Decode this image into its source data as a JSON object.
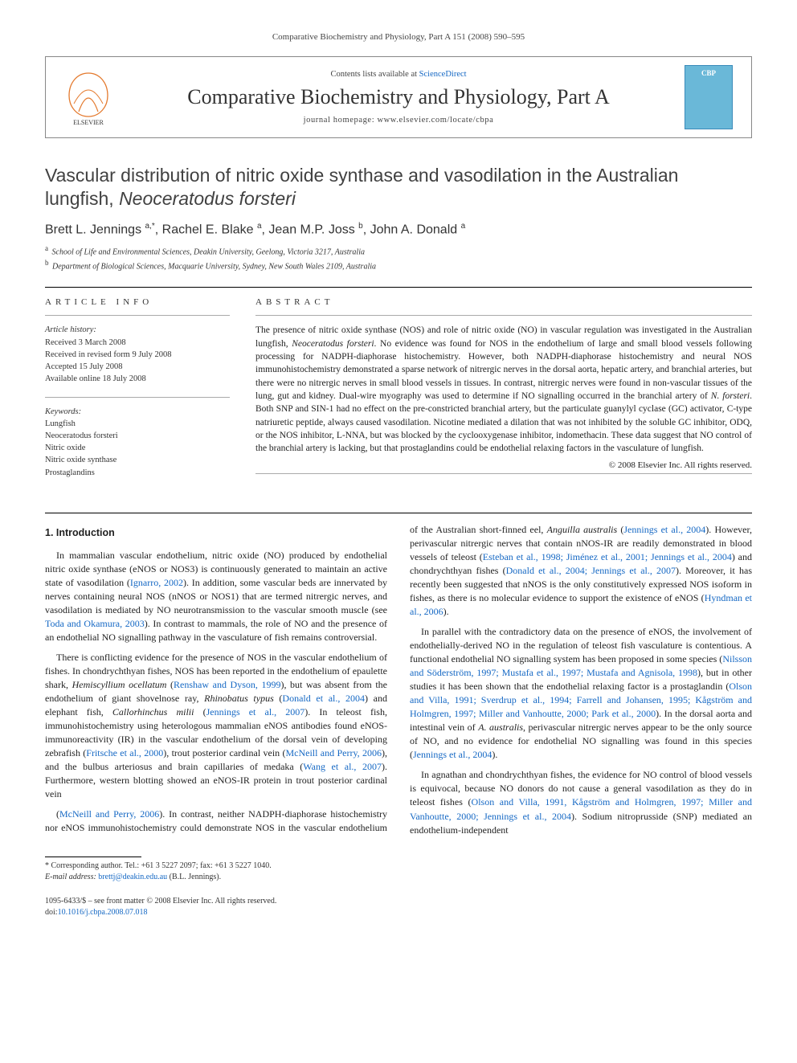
{
  "header": {
    "citation": "Comparative Biochemistry and Physiology, Part A 151 (2008) 590–595"
  },
  "banner": {
    "contents_prefix": "Contents lists available at ",
    "contents_link": "ScienceDirect",
    "journal_name": "Comparative Biochemistry and Physiology, Part A",
    "homepage_prefix": "journal homepage: ",
    "homepage": "www.elsevier.com/locate/cbpa",
    "elsevier_logo_alt": "Elsevier",
    "cbp_cover_alt": "CBP journal cover"
  },
  "title_parts": {
    "main": "Vascular distribution of nitric oxide synthase and vasodilation in the Australian lungfish, ",
    "species": "Neoceratodus forsteri"
  },
  "authors_html_parts": [
    {
      "name": "Brett L. Jennings",
      "sup": "a,*"
    },
    {
      "name": "Rachel E. Blake",
      "sup": "a"
    },
    {
      "name": "Jean M.P. Joss",
      "sup": "b"
    },
    {
      "name": "John A. Donald",
      "sup": "a"
    }
  ],
  "affiliations": [
    {
      "sup": "a",
      "text": "School of Life and Environmental Sciences, Deakin University, Geelong, Victoria 3217, Australia"
    },
    {
      "sup": "b",
      "text": "Department of Biological Sciences, Macquarie University, Sydney, New South Wales 2109, Australia"
    }
  ],
  "article_info": {
    "head": "ARTICLE INFO",
    "history_label": "Article history:",
    "history": [
      "Received 3 March 2008",
      "Received in revised form 9 July 2008",
      "Accepted 15 July 2008",
      "Available online 18 July 2008"
    ],
    "keywords_label": "Keywords:",
    "keywords": [
      "Lungfish",
      "Neoceratodus forsteri",
      "Nitric oxide",
      "Nitric oxide synthase",
      "Prostaglandins"
    ]
  },
  "abstract": {
    "head": "ABSTRACT",
    "text_parts": [
      "The presence of nitric oxide synthase (NOS) and role of nitric oxide (NO) in vascular regulation was investigated in the Australian lungfish, ",
      {
        "i": "Neoceratodus forsteri"
      },
      ". No evidence was found for NOS in the endothelium of large and small blood vessels following processing for NADPH-diaphorase histochemistry. However, both NADPH-diaphorase histochemistry and neural NOS immunohistochemistry demonstrated a sparse network of nitrergic nerves in the dorsal aorta, hepatic artery, and branchial arteries, but there were no nitrergic nerves in small blood vessels in tissues. In contrast, nitrergic nerves were found in non-vascular tissues of the lung, gut and kidney. Dual-wire myography was used to determine if NO signalling occurred in the branchial artery of ",
      {
        "i": "N. forsteri"
      },
      ". Both SNP and SIN-1 had no effect on the pre-constricted branchial artery, but the particulate guanylyl cyclase (GC) activator, C-type natriuretic peptide, always caused vasodilation. Nicotine mediated a dilation that was not inhibited by the soluble GC inhibitor, ODQ, or the NOS inhibitor, L-NNA, but was blocked by the cyclooxygenase inhibitor, indomethacin. These data suggest that NO control of the branchial artery is lacking, but that prostaglandins could be endothelial relaxing factors in the vasculature of lungfish."
    ],
    "copyright": "© 2008 Elsevier Inc. All rights reserved."
  },
  "body": {
    "section_title": "1. Introduction",
    "paragraphs": [
      [
        "In mammalian vascular endothelium, nitric oxide (NO) produced by endothelial nitric oxide synthase (eNOS or NOS3) is continuously generated to maintain an active state of vasodilation (",
        {
          "a": "Ignarro, 2002"
        },
        "). In addition, some vascular beds are innervated by nerves containing neural NOS (nNOS or NOS1) that are termed nitrergic nerves, and vasodilation is mediated by NO neurotransmission to the vascular smooth muscle (see ",
        {
          "a": "Toda and Okamura, 2003"
        },
        "). In contrast to mammals, the role of NO and the presence of an endothelial NO signalling pathway in the vasculature of fish remains controversial."
      ],
      [
        "There is conflicting evidence for the presence of NOS in the vascular endothelium of fishes. In chondrychthyan fishes, NOS has been reported in the endothelium of epaulette shark, ",
        {
          "i": "Hemiscyllium ocellatum"
        },
        " (",
        {
          "a": "Renshaw and Dyson, 1999"
        },
        "), but was absent from the endothelium of giant shovelnose ray, ",
        {
          "i": "Rhinobatus typus"
        },
        " (",
        {
          "a": "Donald et al., 2004"
        },
        ") and elephant fish, ",
        {
          "i": "Callorhinchus milii"
        },
        " (",
        {
          "a": "Jennings et al., 2007"
        },
        "). In teleost fish, immunohistochemistry using heterologous mammalian eNOS antibodies found eNOS-immunoreactivity (IR) in the vascular endothelium of the dorsal vein of developing zebrafish (",
        {
          "a": "Fritsche et al., 2000"
        },
        "), trout posterior cardinal vein (",
        {
          "a": "McNeill and Perry, 2006"
        },
        "), and the bulbus arteriosus and brain capillaries of medaka (",
        {
          "a": "Wang et al., 2007"
        },
        "). Furthermore, western blotting showed an eNOS-IR protein in trout posterior cardinal vein"
      ],
      [
        "(",
        {
          "a": "McNeill and Perry, 2006"
        },
        "). In contrast, neither NADPH-diaphorase histochemistry nor eNOS immunohistochemistry could demonstrate NOS in the vascular endothelium of the Australian short-finned eel, ",
        {
          "i": "Anguilla australis"
        },
        " (",
        {
          "a": "Jennings et al., 2004"
        },
        "). However, perivascular nitrergic nerves that contain nNOS-IR are readily demonstrated in blood vessels of teleost (",
        {
          "a": "Esteban et al., 1998; Jiménez et al., 2001; Jennings et al., 2004"
        },
        ") and chondrychthyan fishes (",
        {
          "a": "Donald et al., 2004; Jennings et al., 2007"
        },
        "). Moreover, it has recently been suggested that nNOS is the only constitutively expressed NOS isoform in fishes, as there is no molecular evidence to support the existence of eNOS (",
        {
          "a": "Hyndman et al., 2006"
        },
        ")."
      ],
      [
        "In parallel with the contradictory data on the presence of eNOS, the involvement of endothelially-derived NO in the regulation of teleost fish vasculature is contentious. A functional endothelial NO signalling system has been proposed in some species (",
        {
          "a": "Nilsson and Söderström, 1997; Mustafa et al., 1997; Mustafa and Agnisola, 1998"
        },
        "), but in other studies it has been shown that the endothelial relaxing factor is a prostaglandin (",
        {
          "a": "Olson and Villa, 1991; Sverdrup et al., 1994; Farrell and Johansen, 1995; Kågström and Holmgren, 1997; Miller and Vanhoutte, 2000; Park et al., 2000"
        },
        "). In the dorsal aorta and intestinal vein of ",
        {
          "i": "A. australis"
        },
        ", perivascular nitrergic nerves appear to be the only source of NO, and no evidence for endothelial NO signalling was found in this species (",
        {
          "a": "Jennings et al., 2004"
        },
        ")."
      ],
      [
        "In agnathan and chondrychthyan fishes, the evidence for NO control of blood vessels is equivocal, because NO donors do not cause a general vasodilation as they do in teleost fishes (",
        {
          "a": "Olson and Villa, 1991, Kågström and Holmgren, 1997; Miller and Vanhoutte, 2000; Jennings et al., 2004"
        },
        "). Sodium nitroprusside (SNP) mediated an endothelium-independent"
      ]
    ]
  },
  "footnote": {
    "corresp_label": "* Corresponding author. Tel.: +61 3 5227 2097; fax: +61 3 5227 1040.",
    "email_label": "E-mail address:",
    "email": "brettj@deakin.edu.au",
    "email_of": "(B.L. Jennings)."
  },
  "bottom": {
    "issn": "1095-6433/$ – see front matter © 2008 Elsevier Inc. All rights reserved.",
    "doi_prefix": "doi:",
    "doi": "10.1016/j.cbpa.2008.07.018"
  },
  "colors": {
    "link": "#1568c4",
    "text": "#222222",
    "rule": "#000000",
    "banner_border": "#888888"
  }
}
